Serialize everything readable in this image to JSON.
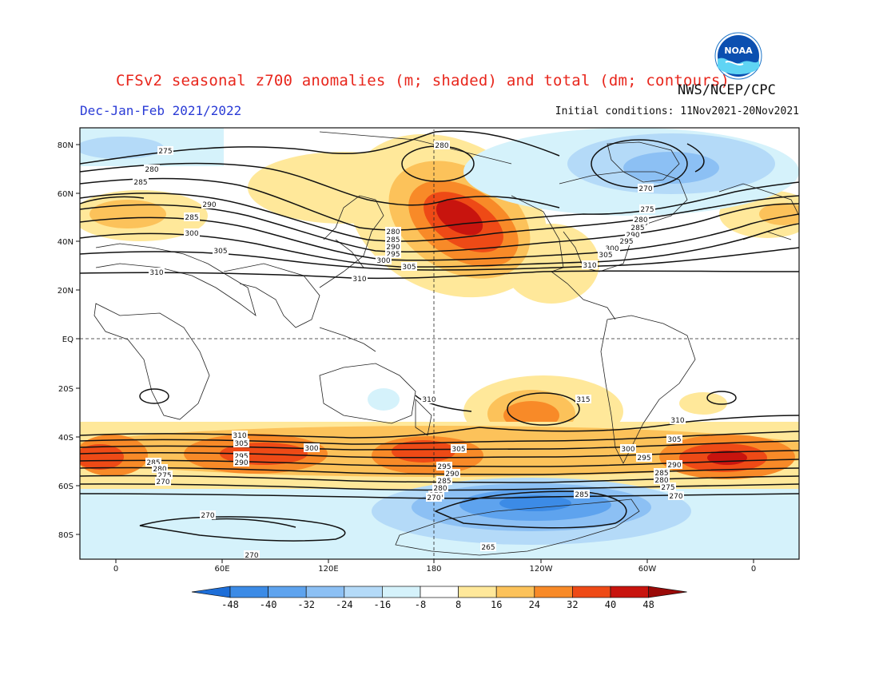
{
  "title": "CFSv2 seasonal z700 anomalies (m; shaded) and total (dm; contours)",
  "agency": "NWS/NCEP/CPC",
  "season": "Dec-Jan-Feb 2021/2022",
  "initial_conditions": "Initial conditions: 11Nov2021-20Nov2021",
  "logo_text": "NOAA",
  "map": {
    "lat_labels": [
      "80N",
      "60N",
      "40N",
      "20N",
      "EQ",
      "20S",
      "40S",
      "60S",
      "80S"
    ],
    "lon_labels": [
      "0",
      "60E",
      "120E",
      "180",
      "120W",
      "60W",
      "0"
    ],
    "contour_labels": [
      "275",
      "280",
      "285",
      "290",
      "295",
      "300",
      "305",
      "310",
      "315",
      "270",
      "265"
    ]
  },
  "colorbar": {
    "ticks": [
      "-48",
      "-40",
      "-32",
      "-24",
      "-16",
      "-8",
      "8",
      "16",
      "24",
      "32",
      "40",
      "48"
    ],
    "colors": [
      "#1e6ed8",
      "#3c8be6",
      "#5ea3ee",
      "#8cc0f4",
      "#b4daf8",
      "#d5f2fb",
      "#ffffff",
      "#ffe89a",
      "#fcc25a",
      "#f88a28",
      "#ee4a16",
      "#c8140e",
      "#9a0a08"
    ]
  }
}
